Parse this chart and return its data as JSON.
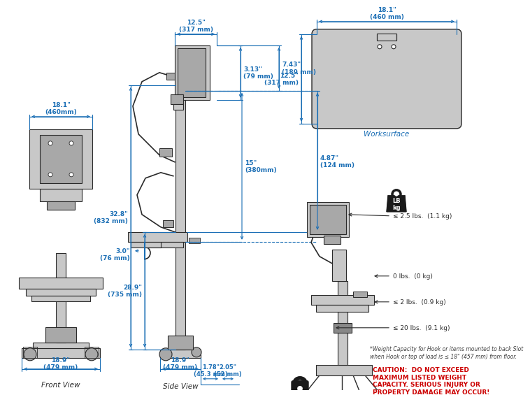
{
  "bg_color": "#ffffff",
  "line_color": "#2a2a2a",
  "dim_color": "#1a6eb5",
  "gray_light": "#c8c8c8",
  "gray_mid": "#a8a8a8",
  "gray_dark": "#888888",
  "caution_color": "#cc0000",
  "footnote_color": "#404040",
  "italic_blue": "#1a6eb5",
  "front_view_label": "Front View",
  "side_view_label": "Side View",
  "worksurface_label": "Worksurface",
  "dim_fw_width": "18.1\"\n(460mm)",
  "dim_fw_base": "18.9\"\n(479 mm)",
  "dim_sv_topw": "12.5\"\n(317 mm)",
  "dim_sv_depth": "3.13\"\n(79 mm)",
  "dim_sv_h1": "7.43\"\n(189 mm)",
  "dim_sv_h2": "4.87\"\n(124 mm)",
  "dim_sv_mid": "15\"\n(380mm)",
  "dim_sv_full": "32.8\"\n(832 mm)",
  "dim_sv_low": "28.9\"\n(735 mm)",
  "dim_sv_hook": "3.0\"\n(76 mm)",
  "dim_sv_base": "18.9\"\n(479 mm)",
  "dim_c1": "1.78\"\n(45.3 mm)",
  "dim_c2": "2.05\"\n(52 mm)",
  "dim_ws_w": "18.1\"\n(460 mm)",
  "dim_ws_h": "12.5\"\n(317 mm)",
  "weight_labels": [
    "≤ 2.5 lbs.  (1.1 kg)",
    "0 lbs.  (0 kg)",
    "≤ 2 lbs.  (0.9 kg)",
    "≤ 20 lbs.  (9.1 kg)"
  ],
  "footnote": "*Weight Capacity for Hook or items mounted to back Slot\nwhen Hook or top of load is ≤ 18\" (457 mm) from floor.",
  "caution": "CAUTION:  DO NOT EXCEED\nMAXIMUM LISTED WEIGHT\nCAPACITY. SERIOUS INJURY OR\nPROPERTY DAMAGE MAY OCCUR!"
}
